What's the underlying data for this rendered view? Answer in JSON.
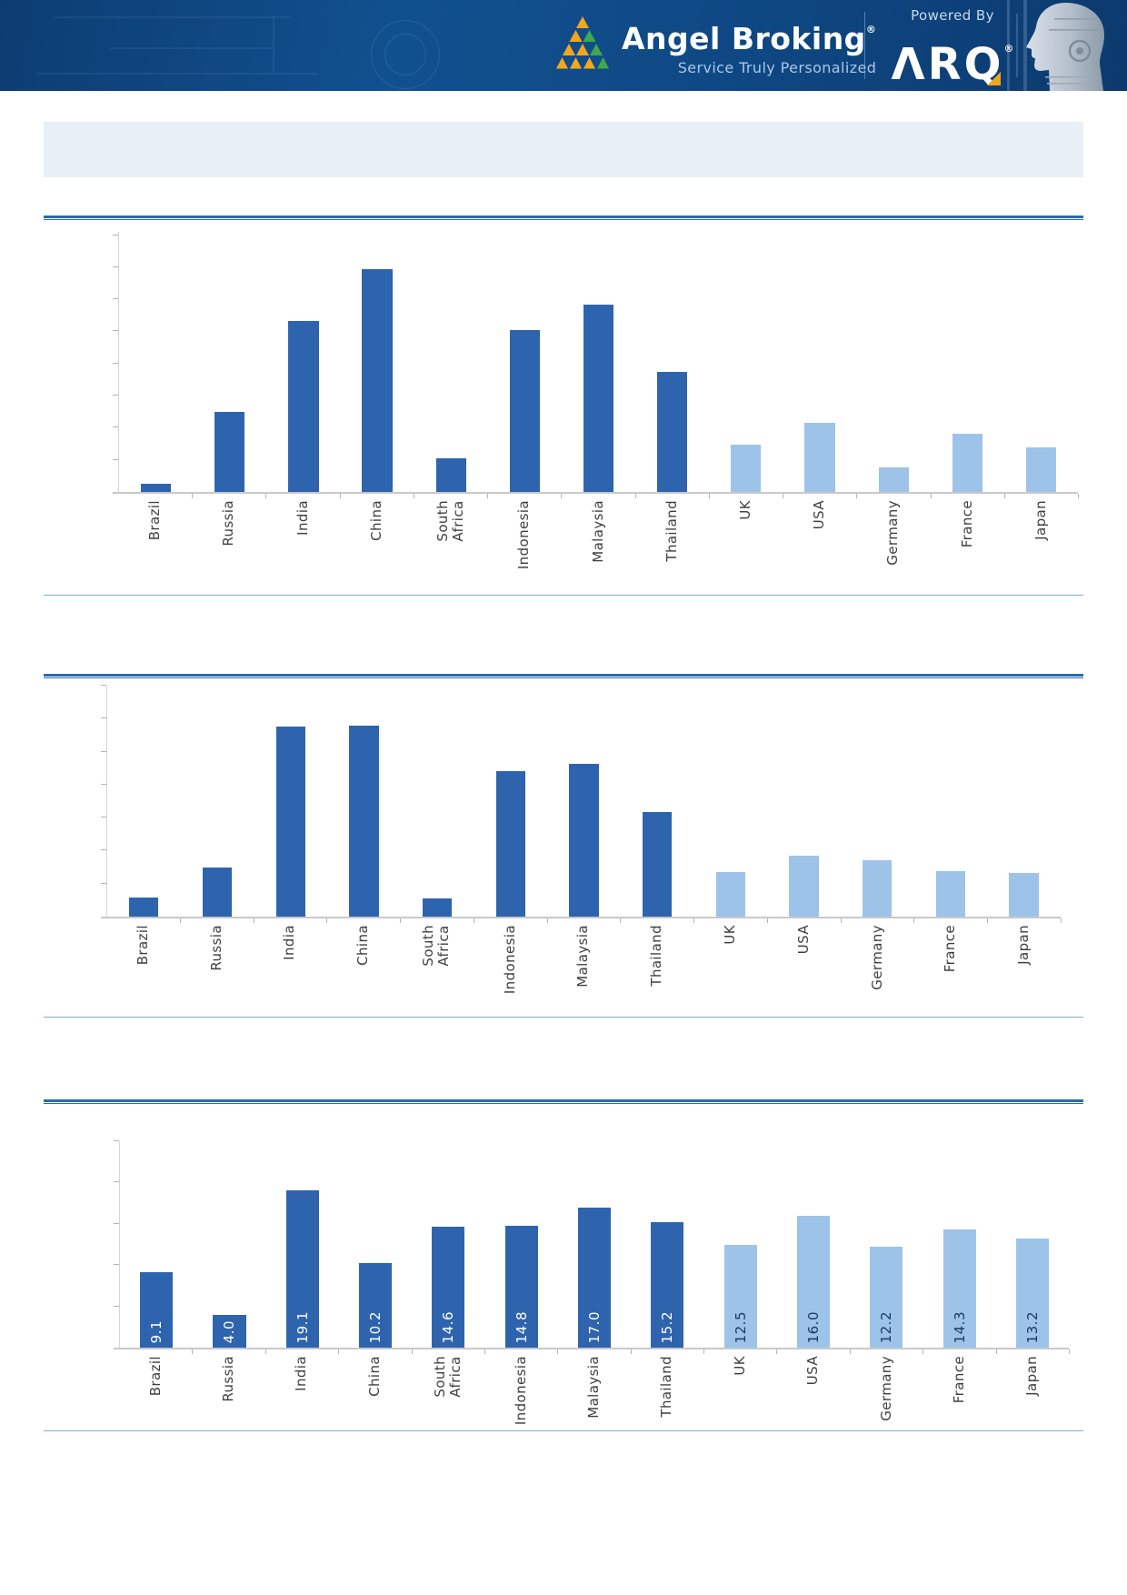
{
  "header": {
    "brand_name": "Angel Broking",
    "brand_registered": "®",
    "tagline": "Service Truly Personalized",
    "powered_by": "Powered By",
    "arq_text": "ΛRQ",
    "arq_registered": "®",
    "colors": {
      "header_bg": "#0F4A86",
      "brand_gold": "#F2A71B",
      "brand_green": "#3FA94C",
      "tagline_blue": "#A9C7E6"
    }
  },
  "banner": {
    "text": ""
  },
  "colors": {
    "bar_dark": "#2E64AE",
    "bar_light": "#9DC3E8",
    "heading_rule": "#2A6AB2",
    "section_divider": "#82AED0",
    "axis_gray": "#C9C9C9",
    "label_text": "#3F3F3F",
    "value_label_on_dark": "#FFFFFF",
    "value_label_on_light": "#1F3864",
    "banner_bg": "#E9EFF7"
  },
  "chart_data": [
    {
      "type": "bar",
      "title": "",
      "xlabel": "",
      "ylabel": "",
      "categories": [
        "Brazil",
        "Russia",
        "India",
        "China",
        "South\nAfrica",
        "Indonesia",
        "Malaysia",
        "Thailand",
        "UK",
        "USA",
        "Germany",
        "France",
        "Japan"
      ],
      "values": [
        0.25,
        2.5,
        5.33,
        6.94,
        1.05,
        5.04,
        5.84,
        3.74,
        1.47,
        2.15,
        0.76,
        1.8,
        1.4
      ],
      "ylim": [
        0,
        8.1
      ],
      "ytick_step": 1,
      "grid": false,
      "legend": false,
      "dark_count": 8,
      "bar_width_pct": 41,
      "value_labels": null
    },
    {
      "type": "bar",
      "title": "",
      "xlabel": "",
      "ylabel": "",
      "categories": [
        "Brazil",
        "Russia",
        "India",
        "China",
        "South\nAfrica",
        "Indonesia",
        "Malaysia",
        "Thailand",
        "UK",
        "USA",
        "Germany",
        "France",
        "Japan"
      ],
      "values": [
        0.58,
        1.49,
        5.76,
        5.79,
        0.55,
        4.41,
        4.63,
        3.17,
        1.35,
        1.85,
        1.71,
        1.38,
        1.32
      ],
      "ylim": [
        0,
        7
      ],
      "ytick_step": 1,
      "grid": false,
      "legend": false,
      "dark_count": 8,
      "bar_width_pct": 40,
      "value_labels": null
    },
    {
      "type": "bar",
      "title": "",
      "xlabel": "",
      "ylabel": "",
      "categories": [
        "Brazil",
        "Russia",
        "India",
        "China",
        "South\nAfrica",
        "Indonesia",
        "Malaysia",
        "Thailand",
        "UK",
        "USA",
        "Germany",
        "France",
        "Japan"
      ],
      "values": [
        9.1,
        4.0,
        19.1,
        10.2,
        14.6,
        14.8,
        17.0,
        15.2,
        12.5,
        16.0,
        12.2,
        14.3,
        13.2
      ],
      "ylim": [
        0,
        25
      ],
      "ytick_step": 5,
      "grid": false,
      "legend": false,
      "dark_count": 8,
      "bar_width_pct": 45,
      "value_labels": [
        "9.1",
        "4.0",
        "19.1",
        "10.2",
        "14.6",
        "14.8",
        "17.0",
        "15.2",
        "12.5",
        "16.0",
        "12.2",
        "14.3",
        "13.2"
      ]
    }
  ]
}
